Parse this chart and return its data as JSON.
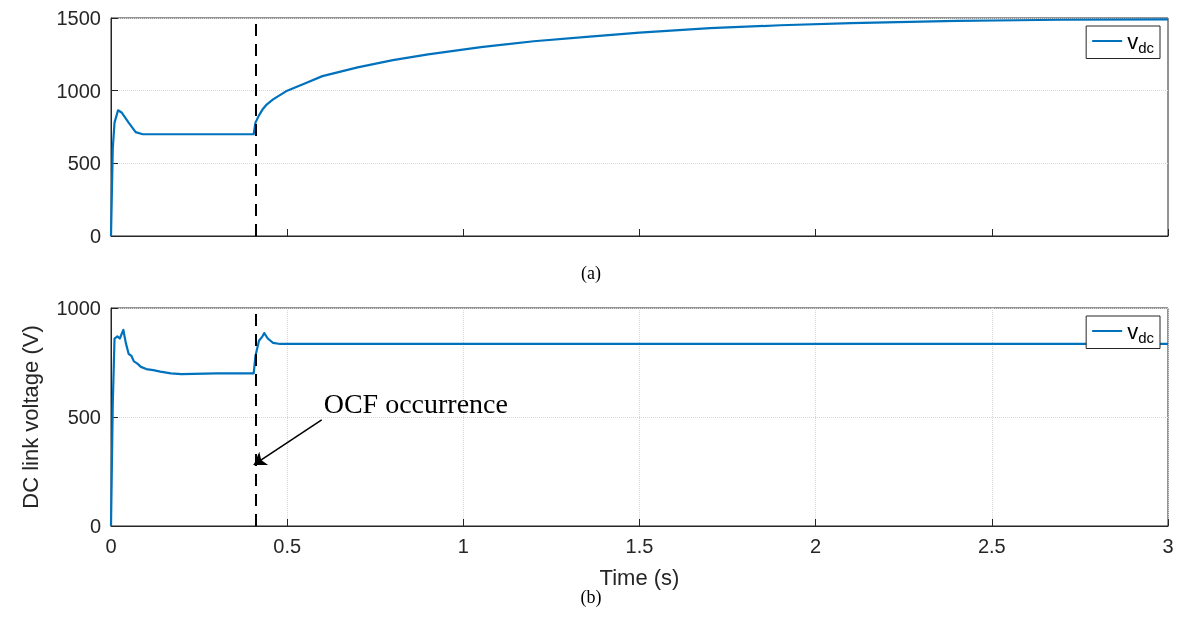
{
  "chart_data": [
    {
      "type": "line",
      "x": [
        0,
        0.005,
        0.01,
        0.02,
        0.03,
        0.05,
        0.07,
        0.09,
        0.12,
        0.2,
        0.3,
        0.4,
        0.405,
        0.41,
        0.42,
        0.43,
        0.44,
        0.46,
        0.5,
        0.55,
        0.6,
        0.7,
        0.8,
        0.9,
        1.05,
        1.2,
        1.35,
        1.5,
        1.7,
        1.9,
        2.1,
        2.4,
        2.7,
        3
      ],
      "series": [
        {
          "name": "v$_{dc}$",
          "color": "#0072bd",
          "values": [
            0,
            600,
            780,
            865,
            850,
            780,
            715,
            700,
            700,
            700,
            700,
            700,
            700,
            780,
            830,
            870,
            900,
            940,
            1000,
            1050,
            1100,
            1160,
            1210,
            1250,
            1300,
            1340,
            1370,
            1400,
            1430,
            1450,
            1465,
            1480,
            1488,
            1490
          ]
        }
      ],
      "xlim": [
        0,
        3
      ],
      "xticks": [
        0,
        0.5,
        1,
        1.5,
        2,
        2.5,
        3
      ],
      "ylim": [
        0,
        1500
      ],
      "yticks": [
        0,
        500,
        1000,
        1500
      ],
      "tick_labels": "y",
      "grid": "y",
      "legend": "top right",
      "line_style": "solid",
      "marker": "none",
      "ref_lines": [
        {
          "axis": "x",
          "value": 0.405,
          "color": "#000000",
          "line_style": "dashed"
        }
      ],
      "annotations": [
        "(a)"
      ]
    },
    {
      "type": "line",
      "x": [
        0,
        0.005,
        0.01,
        0.018,
        0.025,
        0.035,
        0.042,
        0.05,
        0.058,
        0.065,
        0.075,
        0.085,
        0.1,
        0.12,
        0.14,
        0.17,
        0.2,
        0.3,
        0.4,
        0.405,
        0.41,
        0.42,
        0.43,
        0.435,
        0.445,
        0.46,
        0.48,
        0.6,
        1,
        1.5,
        2,
        2.5,
        3
      ],
      "series": [
        {
          "name": "v$_{dc}$",
          "color": "#0072bd",
          "values": [
            0,
            560,
            860,
            870,
            860,
            900,
            840,
            790,
            780,
            755,
            745,
            730,
            720,
            715,
            708,
            700,
            697,
            700,
            700,
            700,
            780,
            850,
            870,
            885,
            860,
            840,
            835,
            835,
            835,
            835,
            835,
            835,
            835
          ]
        }
      ],
      "xlim": [
        0,
        3
      ],
      "xticks": [
        0,
        0.5,
        1,
        1.5,
        2,
        2.5,
        3
      ],
      "ylim": [
        0,
        1000
      ],
      "yticks": [
        0,
        500,
        1000
      ],
      "xlabel": "Time (s)",
      "ylabel": "DC link voltage (V)",
      "grid": true,
      "legend": "top right",
      "line_style": "solid",
      "marker": "none",
      "ref_lines": [
        {
          "axis": "x",
          "value": 0.405,
          "color": "#000000",
          "line_style": "dashed"
        }
      ],
      "annotations": [
        {
          "text": "OCF occurrence",
          "x": 0.405,
          "y": 280
        },
        "(b)"
      ]
    }
  ]
}
